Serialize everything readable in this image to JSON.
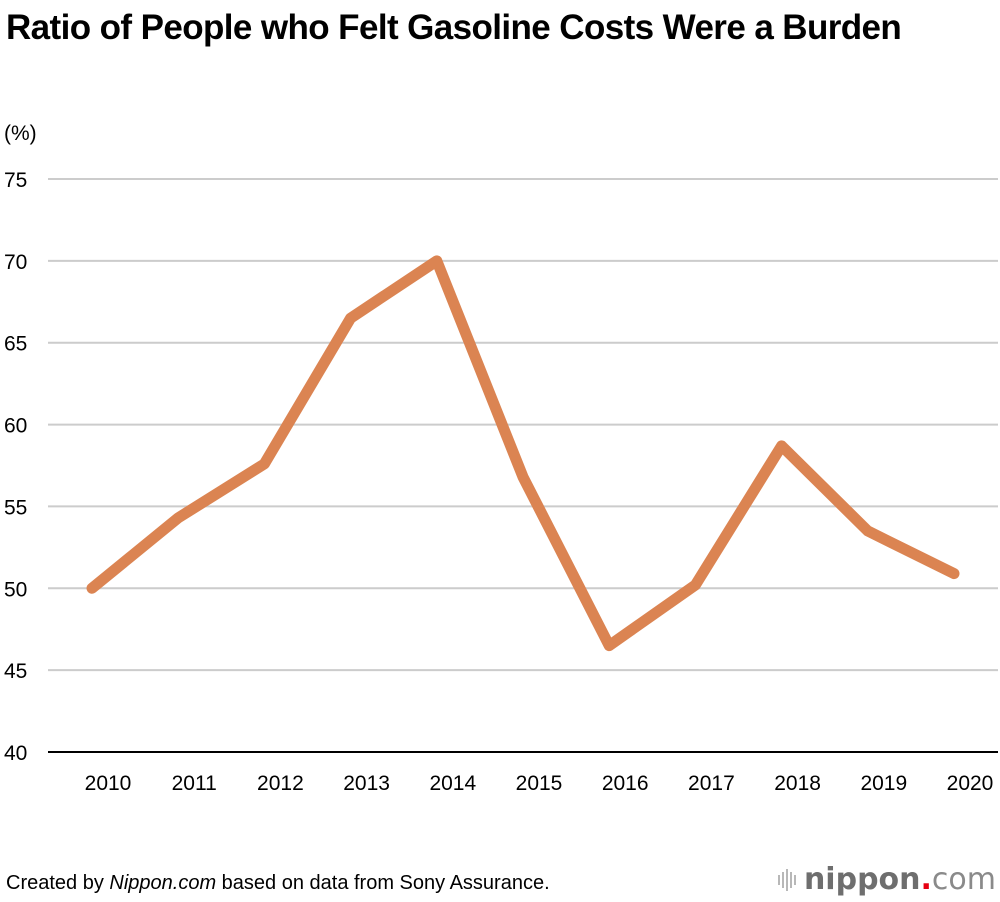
{
  "chart_data": {
    "type": "line",
    "title": "Ratio of People who Felt Gasoline Costs Were a Burden",
    "ylabel": "(%)",
    "xlabel": "",
    "categories": [
      "2010",
      "2011",
      "2012",
      "2013",
      "2014",
      "2015",
      "2016",
      "2017",
      "2018",
      "2019",
      "2020"
    ],
    "series": [
      {
        "name": "Ratio who felt gasoline costs were a burden",
        "values": [
          50.0,
          54.3,
          57.6,
          66.5,
          70.0,
          56.8,
          46.5,
          50.2,
          58.7,
          53.5,
          50.9
        ],
        "color": "#db8452"
      }
    ],
    "ylim": [
      40,
      75
    ],
    "yticks": [
      "40",
      "45",
      "50",
      "55",
      "60",
      "65",
      "70",
      "75"
    ],
    "grid": true,
    "legend": "none"
  },
  "footer": {
    "prefix": "Created by ",
    "source_site": "Nippon.com",
    "suffix": " based on data from Sony Assurance."
  },
  "logo": {
    "name": "nippon",
    "dot": ".",
    "tld": "com"
  }
}
